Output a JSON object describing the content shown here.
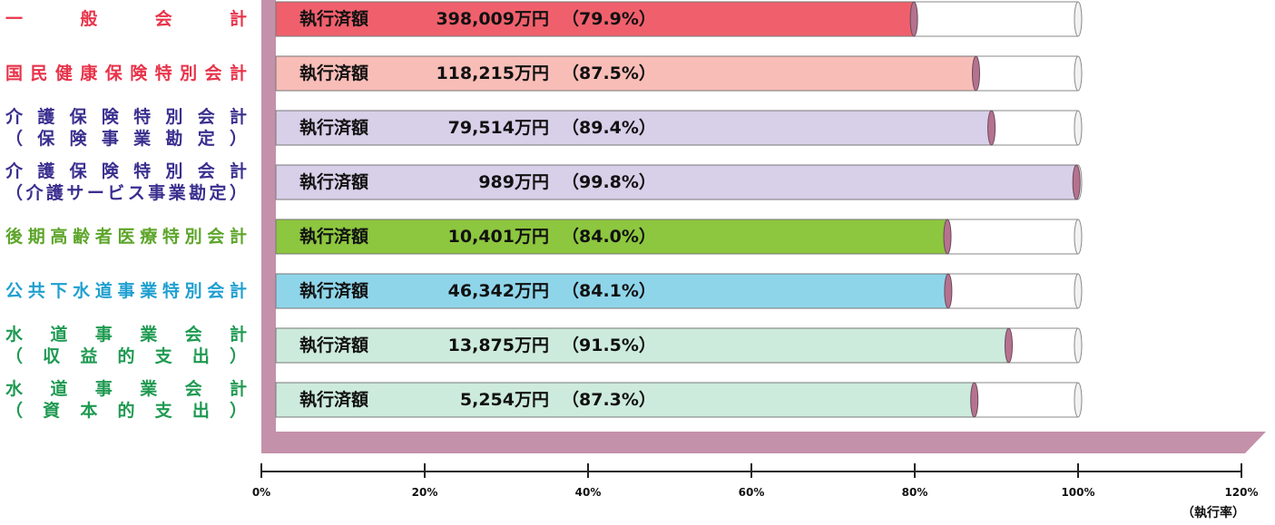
{
  "chart_data": {
    "type": "bar",
    "orientation": "horizontal",
    "xlim": [
      0,
      120
    ],
    "ticks": [
      "0%",
      "20%",
      "40%",
      "60%",
      "80%",
      "100%",
      "120%"
    ],
    "axis_unit": "（執行率）",
    "categories": [
      {
        "lines": [
          "一　般　会　計"
        ],
        "color": "#e8334a"
      },
      {
        "lines": [
          "国民健康保険特別会計"
        ],
        "color": "#e8334a"
      },
      {
        "lines": [
          "介護保険特別会計",
          "（保険事業勘定）"
        ],
        "color": "#3a2f8f"
      },
      {
        "lines": [
          "介護保険特別会計",
          "（介護サービス事業勘定）"
        ],
        "color": "#3a2f8f"
      },
      {
        "lines": [
          "後期高齢者医療特別会計"
        ],
        "color": "#5da52a"
      },
      {
        "lines": [
          "公共下水道事業特別会計"
        ],
        "color": "#1f9fd0"
      },
      {
        "lines": [
          "水　道　事　業　会　計",
          "（　収　益　的　支　出　）"
        ],
        "color": "#1f9a52"
      },
      {
        "lines": [
          "水　道　事　業　会　計",
          "（　資　本　的　支　出　）"
        ],
        "color": "#1f9a52"
      }
    ],
    "bars": [
      {
        "label": "執行済額",
        "amount": "398,009万円",
        "rate_text": "（79.9%）",
        "value": 79.9,
        "fill": "#f0606c"
      },
      {
        "label": "執行済額",
        "amount": "118,215万円",
        "rate_text": "（87.5%）",
        "value": 87.5,
        "fill": "#f9bdb8"
      },
      {
        "label": "執行済額",
        "amount": "79,514万円",
        "rate_text": "（89.4%）",
        "value": 89.4,
        "fill": "#d8cfe9"
      },
      {
        "label": "執行済額",
        "amount": "989万円",
        "rate_text": "（99.8%）",
        "value": 99.8,
        "fill": "#d8cfe9"
      },
      {
        "label": "執行済額",
        "amount": "10,401万円",
        "rate_text": "（84.0%）",
        "value": 84.0,
        "fill": "#8dc63f"
      },
      {
        "label": "執行済額",
        "amount": "46,342万円",
        "rate_text": "（84.1%）",
        "value": 84.1,
        "fill": "#8fd5ea"
      },
      {
        "label": "執行済額",
        "amount": "13,875万円",
        "rate_text": "（91.5%）",
        "value": 91.5,
        "fill": "#cdebdc"
      },
      {
        "label": "執行済額",
        "amount": "5,254万円",
        "rate_text": "（87.3%）",
        "value": 87.3,
        "fill": "#cdebdc"
      }
    ],
    "wall_color": "#c491aa",
    "floor_color": "#c491aa",
    "cap_color": "#b5728f"
  }
}
